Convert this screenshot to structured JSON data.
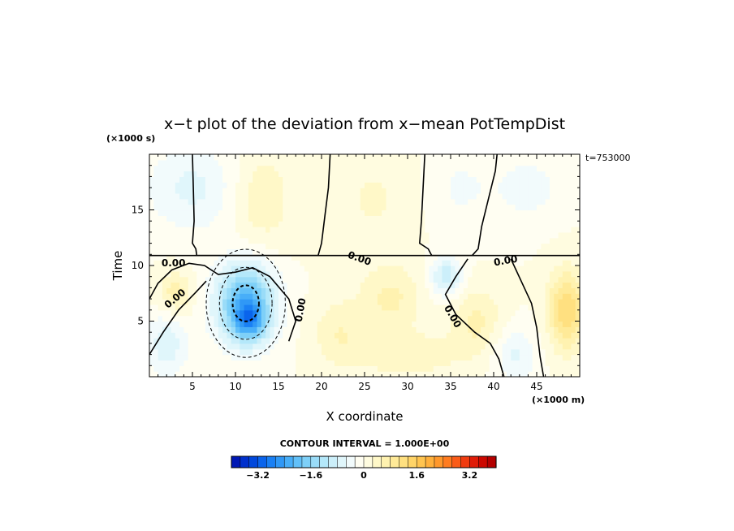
{
  "chart_data": {
    "type": "heatmap",
    "title": "x−t plot of the deviation from x−mean PotTempDist",
    "xlabel": "X coordinate",
    "ylabel": "Time",
    "x_unit": "(×1000 m)",
    "y_unit": "(×1000 s)",
    "time_stamp": "t=753000",
    "xlim": [
      0,
      50
    ],
    "ylim": [
      0,
      20
    ],
    "x_ticks": [
      "5",
      "10",
      "15",
      "20",
      "25",
      "30",
      "35",
      "40",
      "45"
    ],
    "y_ticks": [
      "5",
      "10",
      "15"
    ],
    "contour_labels": [
      {
        "text": "0.00",
        "x": 2.8,
        "y": 10.2
      },
      {
        "text": "0.00",
        "x": 3.0,
        "y": 7.0,
        "angle": -40
      },
      {
        "text": "0.00",
        "x": 17.6,
        "y": 6.0,
        "angle": -80
      },
      {
        "text": "0.00",
        "x": 24.4,
        "y": 10.6,
        "angle": 20
      },
      {
        "text": "0.00",
        "x": 35.2,
        "y": 5.4,
        "angle": 60
      },
      {
        "text": "0.00",
        "x": 41.4,
        "y": 10.4,
        "angle": -10
      }
    ],
    "zero_contour": [
      [
        [
          5.0,
          20.0
        ],
        [
          5.1,
          17.0
        ],
        [
          5.2,
          14.0
        ],
        [
          5.0,
          12.0
        ],
        [
          5.4,
          11.5
        ],
        [
          5.5,
          10.9
        ],
        [
          18.0,
          10.9
        ],
        [
          19.6,
          10.9
        ],
        [
          20.0,
          12.0
        ],
        [
          20.4,
          14.5
        ],
        [
          20.8,
          17.0
        ],
        [
          21.0,
          20.0
        ]
      ],
      [
        [
          32.0,
          20.0
        ],
        [
          31.8,
          17.0
        ],
        [
          31.6,
          14.0
        ],
        [
          31.4,
          12.0
        ],
        [
          32.4,
          11.5
        ],
        [
          32.8,
          10.9
        ],
        [
          37.5,
          10.9
        ],
        [
          38.2,
          11.5
        ],
        [
          38.6,
          13.5
        ],
        [
          39.4,
          16.0
        ],
        [
          40.2,
          18.5
        ],
        [
          40.4,
          20.0
        ]
      ],
      [
        [
          0.0,
          10.9
        ],
        [
          50.0,
          10.9
        ]
      ],
      [
        [
          0.0,
          2.0
        ],
        [
          1.6,
          4.0
        ],
        [
          3.4,
          6.0
        ],
        [
          5.4,
          7.6
        ],
        [
          6.6,
          8.6
        ]
      ],
      [
        [
          0.0,
          7.0
        ],
        [
          1.0,
          8.4
        ],
        [
          2.6,
          9.6
        ],
        [
          4.6,
          10.2
        ],
        [
          6.4,
          10.0
        ],
        [
          8.0,
          9.2
        ],
        [
          10.0,
          9.4
        ],
        [
          12.0,
          9.8
        ],
        [
          14.0,
          9.0
        ],
        [
          16.2,
          7.0
        ],
        [
          17.0,
          5.0
        ],
        [
          16.2,
          3.2
        ]
      ],
      [
        [
          37.0,
          10.6
        ],
        [
          35.6,
          9.0
        ],
        [
          34.4,
          7.4
        ],
        [
          35.6,
          5.6
        ],
        [
          37.8,
          4.0
        ],
        [
          39.6,
          3.0
        ],
        [
          40.6,
          1.6
        ],
        [
          41.2,
          0.0
        ]
      ],
      [
        [
          42.0,
          10.6
        ],
        [
          43.2,
          8.6
        ],
        [
          44.4,
          6.6
        ],
        [
          45.0,
          4.4
        ],
        [
          45.4,
          1.8
        ],
        [
          45.8,
          0.0
        ]
      ]
    ],
    "anomalies": [
      {
        "x": 11.2,
        "y": 6.6,
        "sx": 3.4,
        "sy": 3.6,
        "v": -2.2
      },
      {
        "x": 11.6,
        "y": 5.0,
        "sx": 1.8,
        "sy": 1.6,
        "v": -1.2
      },
      {
        "x": 5.0,
        "y": 17.0,
        "sx": 5.5,
        "sy": 4.0,
        "v": -0.6
      },
      {
        "x": 2.0,
        "y": 3.0,
        "sx": 2.5,
        "sy": 3.0,
        "v": -0.7
      },
      {
        "x": 26.0,
        "y": 16.0,
        "sx": 5.0,
        "sy": 5.0,
        "v": 0.3
      },
      {
        "x": 36.0,
        "y": 17.0,
        "sx": 4.0,
        "sy": 4.0,
        "v": -0.3
      },
      {
        "x": 44.0,
        "y": 17.0,
        "sx": 4.0,
        "sy": 3.0,
        "v": -0.4
      },
      {
        "x": 13.0,
        "y": 16.0,
        "sx": 3.5,
        "sy": 4.5,
        "v": 0.5
      },
      {
        "x": 48.5,
        "y": 6.0,
        "sx": 2.2,
        "sy": 3.5,
        "v": 1.3
      },
      {
        "x": 28.0,
        "y": 7.0,
        "sx": 3.5,
        "sy": 3.0,
        "v": 0.6
      },
      {
        "x": 22.0,
        "y": 4.0,
        "sx": 3.0,
        "sy": 3.0,
        "v": 0.5
      },
      {
        "x": 38.0,
        "y": 5.0,
        "sx": 3.0,
        "sy": 3.0,
        "v": 0.6
      },
      {
        "x": 30.0,
        "y": 2.0,
        "sx": 6.0,
        "sy": 2.0,
        "v": 0.5
      },
      {
        "x": 34.5,
        "y": 9.0,
        "sx": 1.8,
        "sy": 1.8,
        "v": -1.0
      },
      {
        "x": 42.5,
        "y": 2.0,
        "sx": 2.5,
        "sy": 2.5,
        "v": -0.6
      },
      {
        "x": 3.0,
        "y": 7.5,
        "sx": 2.0,
        "sy": 2.0,
        "v": 0.7
      }
    ],
    "colorbar": {
      "label": "CONTOUR INTERVAL = 1.000E+00",
      "min": -4.0,
      "max": 4.0,
      "tick_values": [
        -3.2,
        -1.6,
        0,
        1.6,
        3.2
      ],
      "tick_labels": [
        "−3.2",
        "−1.6",
        "0",
        "1.6",
        "3.2"
      ],
      "colors": [
        "#0018b4",
        "#0030cc",
        "#0048dc",
        "#0a64ec",
        "#1a80f4",
        "#3098f6",
        "#48aef8",
        "#62c0f8",
        "#7ed0f8",
        "#9adcf8",
        "#b4e8fa",
        "#cceffa",
        "#e0f6fb",
        "#f2fbfc",
        "#fffef2",
        "#fffce0",
        "#fff8c8",
        "#fff2b0",
        "#ffea98",
        "#ffe080",
        "#ffd468",
        "#ffc450",
        "#ffb03c",
        "#ff982c",
        "#ff7c20",
        "#fa5c18",
        "#f03c10",
        "#e01c08",
        "#cc0800",
        "#b40000"
      ]
    }
  }
}
